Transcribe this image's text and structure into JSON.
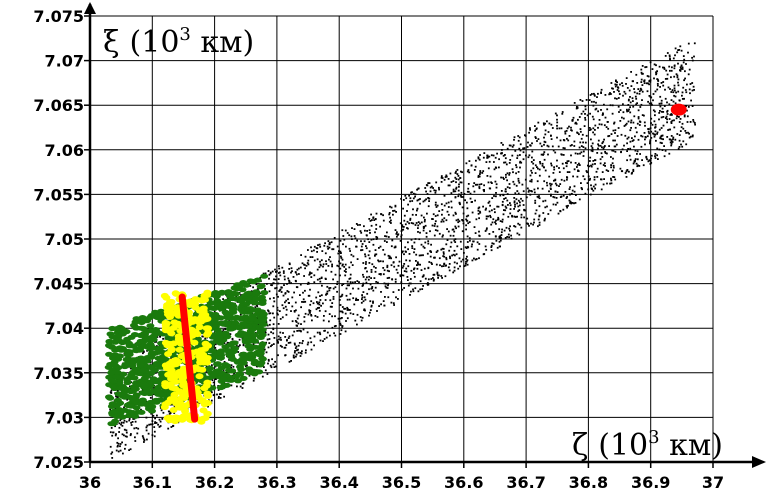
{
  "chart_data": {
    "type": "scatter",
    "title": "",
    "xlabel": {
      "symbol": "ζ",
      "open": "(10",
      "exp": "3",
      "unit": " км)"
    },
    "ylabel": {
      "symbol": "ξ",
      "open": "(10",
      "exp": "3",
      "unit": " км)"
    },
    "xlim": [
      36,
      37
    ],
    "ylim": [
      7.025,
      7.075
    ],
    "x_ticks": [
      "36",
      "36.1",
      "36.2",
      "36.3",
      "36.4",
      "36.5",
      "36.6",
      "36.7",
      "36.8",
      "36.9",
      "37"
    ],
    "y_ticks": [
      "7.025",
      "7.03",
      "7.035",
      "7.04",
      "7.045",
      "7.05",
      "7.055",
      "7.06",
      "7.065",
      "7.07",
      "7.075"
    ],
    "grid": true,
    "series": [
      {
        "kind": "black-cloud",
        "color": "#000000",
        "count": 3200,
        "axis_start": [
          36.03,
          7.031
        ],
        "axis_end": [
          36.97,
          7.067
        ],
        "perpendicular_spread_y": 0.0058
      },
      {
        "kind": "green-cluster",
        "color": "#1a7a0d",
        "count": 900,
        "x_range": [
          36.03,
          36.28
        ],
        "y_center_at_x_start": 7.0345,
        "y_center_at_x_end": 7.0405,
        "y_spread": 0.0055
      },
      {
        "kind": "yellow-band",
        "color": "#ffff00",
        "count": 260,
        "x_range": [
          36.12,
          36.19
        ],
        "y_range": [
          7.0295,
          7.044
        ]
      },
      {
        "kind": "red-line",
        "color": "#ff0000",
        "points": [
          [
            36.148,
            7.0435
          ],
          [
            36.168,
            7.0298
          ]
        ]
      },
      {
        "kind": "red-point",
        "color": "#ff0000",
        "points": [
          [
            36.945,
            7.0645
          ]
        ]
      }
    ]
  }
}
